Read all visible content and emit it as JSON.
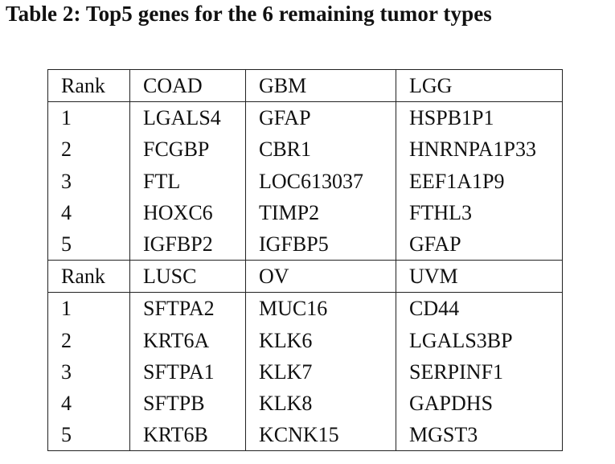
{
  "caption": "Table 2: Top5 genes for the 6 remaining tumor types",
  "blocks": [
    {
      "header": [
        "Rank",
        "COAD",
        "GBM",
        "LGG"
      ],
      "rows": [
        [
          "1",
          "LGALS4",
          "GFAP",
          "HSPB1P1"
        ],
        [
          "2",
          "FCGBP",
          "CBR1",
          "HNRNPA1P33"
        ],
        [
          "3",
          "FTL",
          "LOC613037",
          "EEF1A1P9"
        ],
        [
          "4",
          "HOXC6",
          "TIMP2",
          "FTHL3"
        ],
        [
          "5",
          "IGFBP2",
          "IGFBP5",
          "GFAP"
        ]
      ]
    },
    {
      "header": [
        "Rank",
        "LUSC",
        "OV",
        "UVM"
      ],
      "rows": [
        [
          "1",
          "SFTPA2",
          "MUC16",
          "CD44"
        ],
        [
          "2",
          "KRT6A",
          "KLK6",
          "LGALS3BP"
        ],
        [
          "3",
          "SFTPA1",
          "KLK7",
          "SERPINF1"
        ],
        [
          "4",
          "SFTPB",
          "KLK8",
          "GAPDHS"
        ],
        [
          "5",
          "KRT6B",
          "KCNK15",
          "MGST3"
        ]
      ]
    }
  ]
}
